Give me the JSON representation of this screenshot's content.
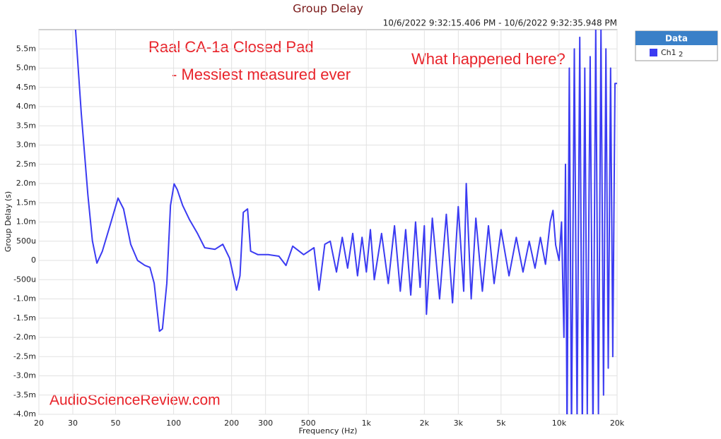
{
  "chart_data": {
    "type": "line",
    "title": "Group Delay",
    "subtitle": "10/6/2022 9:32:15.406 PM - 10/6/2022 9:32:35.948 PM",
    "x_label": "Frequency (Hz)",
    "y_label": "Group Delay (s)",
    "annotations": [
      "Raal CA-1a Closed Pad",
      "- Messiest measured ever",
      "What happened here?",
      "AudioScienceReview.com"
    ],
    "legend_title": "Data",
    "legend_extra": "2",
    "x_log": true,
    "grid": true,
    "xlim": [
      20,
      20000
    ],
    "ylim": [
      -0.004,
      0.006
    ],
    "xticks": [
      20,
      30,
      50,
      100,
      200,
      300,
      500,
      {
        "value": 1000,
        "label": "1k"
      },
      {
        "value": 2000,
        "label": "2k"
      },
      {
        "value": 3000,
        "label": "3k"
      },
      {
        "value": 5000,
        "label": "5k"
      },
      {
        "value": 10000,
        "label": "10k"
      },
      {
        "value": 20000,
        "label": "20k"
      }
    ],
    "yticks": [
      {
        "value": 0.0055,
        "label": "5.5m"
      },
      {
        "value": 0.005,
        "label": "5.0m"
      },
      {
        "value": 0.0045,
        "label": "4.5m"
      },
      {
        "value": 0.004,
        "label": "4.0m"
      },
      {
        "value": 0.0035,
        "label": "3.5m"
      },
      {
        "value": 0.003,
        "label": "3.0m"
      },
      {
        "value": 0.0025,
        "label": "2.5m"
      },
      {
        "value": 0.002,
        "label": "2.0m"
      },
      {
        "value": 0.0015,
        "label": "1.5m"
      },
      {
        "value": 0.001,
        "label": "1.0m"
      },
      {
        "value": 0.0005,
        "label": "500u"
      },
      0,
      {
        "value": -0.0005,
        "label": "-500u"
      },
      {
        "value": -0.001,
        "label": "-1.0m"
      },
      {
        "value": -0.0015,
        "label": "-1.5m"
      },
      {
        "value": -0.002,
        "label": "-2.0m"
      },
      {
        "value": -0.0025,
        "label": "-2.5m"
      },
      {
        "value": -0.003,
        "label": "-3.0m"
      },
      {
        "value": -0.0035,
        "label": "-3.5m"
      },
      {
        "value": -0.004,
        "label": "-4.0m"
      }
    ],
    "x": [
      31,
      33.2,
      35.9,
      37.9,
      40,
      42.7,
      46.6,
      51.5,
      55,
      59.9,
      65,
      71,
      75.4,
      79.3,
      84.5,
      87.5,
      92.2,
      96.4,
      100.6,
      104.5,
      111.4,
      120.6,
      133,
      145,
      164,
      180,
      195,
      212,
      221,
      230,
      242,
      251,
      274,
      310,
      352,
      383,
      415,
      473,
      535,
      568,
      609,
      650,
      700,
      750,
      800,
      850,
      900,
      950,
      1000,
      1050,
      1100,
      1200,
      1300,
      1400,
      1500,
      1600,
      1700,
      1800,
      1900,
      2000,
      2050,
      2200,
      2400,
      2600,
      2800,
      3000,
      3200,
      3300,
      3500,
      3700,
      4000,
      4300,
      4600,
      5000,
      5500,
      6000,
      6500,
      7000,
      7500,
      8000,
      8500,
      9000,
      9300,
      9600,
      10000,
      10300,
      10600,
      10800,
      11000,
      11300,
      11600,
      12000,
      12400,
      12800,
      13200,
      13600,
      14000,
      14500,
      15000,
      15500,
      16000,
      16500,
      17000,
      17500,
      18000,
      18500,
      19000,
      19500,
      20000
    ],
    "series": [
      {
        "name": "Ch1",
        "color": "#3b3bf2",
        "values": [
          0.006,
          0.00382,
          0.00171,
          0.00051,
          -7e-05,
          0.00024,
          0.00088,
          0.00162,
          0.00134,
          0.00042,
          0,
          -0.00013,
          -0.00018,
          -0.00059,
          -0.00184,
          -0.00178,
          -0.00059,
          0.00143,
          0.00199,
          0.00184,
          0.00143,
          0.00107,
          0.0007,
          0.00033,
          0.00029,
          0.00042,
          6e-05,
          -0.00077,
          -0.0004,
          0.00125,
          0.00134,
          0.00024,
          0.00015,
          0.00015,
          0.00011,
          -0.00013,
          0.00037,
          0.00015,
          0.00033,
          -0.00077,
          0.00042,
          0.0005,
          -0.0003,
          0.0006,
          -0.0002,
          0.0007,
          -0.0004,
          0.0006,
          -0.0003,
          0.0008,
          -0.0005,
          0.0007,
          -0.0006,
          0.0009,
          -0.0008,
          0.0008,
          -0.0009,
          0.001,
          -0.0007,
          0.0009,
          -0.0014,
          0.0011,
          -0.001,
          0.0012,
          -0.0011,
          0.0014,
          -0.0008,
          0.002,
          -0.001,
          0.0011,
          -0.0008,
          0.0009,
          -0.0006,
          0.0008,
          -0.0004,
          0.0006,
          -0.0003,
          0.0005,
          -0.0002,
          0.0006,
          -0.0001,
          0.001,
          0.0013,
          0.0004,
          0,
          0.001,
          -0.002,
          0.0025,
          -0.0045,
          0.005,
          -0.0045,
          0.0055,
          -0.0042,
          0.0058,
          -0.0045,
          0.005,
          -0.004,
          0.0053,
          -0.0045,
          0.006,
          -0.004,
          0.006,
          -0.0035,
          0.0055,
          -0.0028,
          0.005,
          -0.0025,
          0.0046,
          0.0046
        ]
      }
    ]
  }
}
